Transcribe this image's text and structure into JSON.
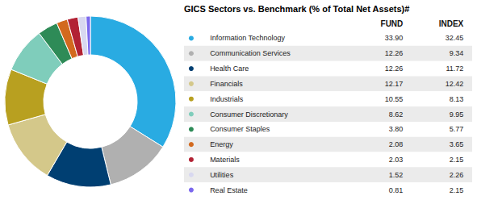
{
  "chart_data": {
    "type": "pie",
    "title": "GICS Sectors vs. Benchmark (% of Total Net Assets)#",
    "col_headers": [
      "FUND",
      "INDEX"
    ],
    "categories": [
      "Information Technology",
      "Communication Services",
      "Health Care",
      "Financials",
      "Industrials",
      "Consumer Discretionary",
      "Consumer Staples",
      "Energy",
      "Materials",
      "Utilities",
      "Real Estate"
    ],
    "values": [
      33.9,
      12.26,
      12.26,
      12.17,
      10.55,
      8.62,
      3.8,
      2.08,
      2.03,
      1.52,
      0.81
    ],
    "value_labels": [
      "33.90",
      "12.26",
      "12.26",
      "12.17",
      "10.55",
      "8.62",
      "3.80",
      "2.08",
      "2.03",
      "1.52",
      "0.81"
    ],
    "index": [
      32.45,
      9.34,
      11.72,
      12.42,
      8.13,
      9.95,
      5.77,
      3.65,
      2.15,
      2.26,
      2.15
    ],
    "colors": [
      "#29ABE2",
      "#B0B0B0",
      "#003F72",
      "#D4C88A",
      "#B8A020",
      "#7FCDBB",
      "#2E8B57",
      "#D2691E",
      "#B22234",
      "#D8D8F0",
      "#7B68EE"
    ]
  }
}
